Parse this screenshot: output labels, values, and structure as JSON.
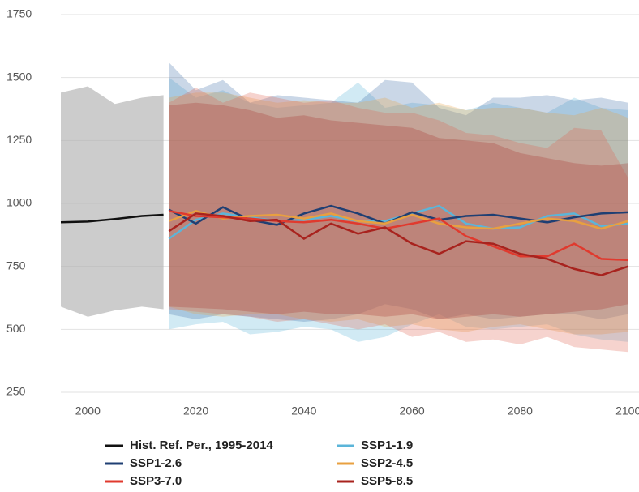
{
  "chart_data": {
    "type": "line",
    "xlim": [
      1995,
      2102
    ],
    "xticks": [
      2000,
      2020,
      2040,
      2060,
      2080,
      2100
    ],
    "ylim": [
      250,
      1750
    ],
    "yticks": [
      250,
      500,
      750,
      1000,
      1250,
      1500,
      1750
    ],
    "grid": true,
    "series": [
      {
        "name": "Hist. Ref. Per., 1995-2014",
        "color": "#111111",
        "band_color": "#b0b0b0",
        "x": [
          1995,
          2000,
          2005,
          2010,
          2014
        ],
        "values": [
          925,
          928,
          938,
          950,
          955
        ],
        "lower": [
          590,
          550,
          575,
          590,
          580
        ],
        "upper": [
          1440,
          1465,
          1395,
          1420,
          1430
        ]
      },
      {
        "name": "SSP1-1.9",
        "color": "#5bb5d9",
        "band_color": "#5bb5d9",
        "x": [
          2015,
          2020,
          2025,
          2030,
          2035,
          2040,
          2045,
          2050,
          2055,
          2060,
          2065,
          2070,
          2075,
          2080,
          2085,
          2090,
          2095,
          2100
        ],
        "values": [
          860,
          935,
          960,
          945,
          930,
          935,
          950,
          930,
          930,
          960,
          990,
          920,
          900,
          905,
          950,
          960,
          910,
          920
        ],
        "lower": [
          500,
          520,
          530,
          480,
          490,
          510,
          500,
          450,
          470,
          520,
          560,
          510,
          500,
          510,
          520,
          480,
          460,
          450
        ],
        "upper": [
          1500,
          1420,
          1450,
          1400,
          1380,
          1390,
          1400,
          1480,
          1380,
          1400,
          1390,
          1370,
          1400,
          1380,
          1360,
          1420,
          1380,
          1370
        ]
      },
      {
        "name": "SSP1-2.6",
        "color": "#1f3f73",
        "band_color": "#3f6fa8",
        "x": [
          2015,
          2020,
          2025,
          2030,
          2035,
          2040,
          2045,
          2050,
          2055,
          2060,
          2065,
          2070,
          2075,
          2080,
          2085,
          2090,
          2095,
          2100
        ],
        "values": [
          975,
          920,
          985,
          935,
          915,
          960,
          990,
          960,
          920,
          965,
          935,
          950,
          955,
          940,
          925,
          945,
          960,
          965
        ],
        "lower": [
          560,
          540,
          560,
          550,
          540,
          530,
          540,
          560,
          600,
          580,
          540,
          560,
          540,
          550,
          560,
          560,
          540,
          560
        ],
        "upper": [
          1560,
          1450,
          1490,
          1400,
          1430,
          1420,
          1410,
          1400,
          1490,
          1480,
          1380,
          1350,
          1420,
          1420,
          1430,
          1410,
          1420,
          1400
        ]
      },
      {
        "name": "SSP2-4.5",
        "color": "#e8a040",
        "band_color": "#e8a040",
        "x": [
          2015,
          2020,
          2025,
          2030,
          2035,
          2040,
          2045,
          2050,
          2055,
          2060,
          2065,
          2070,
          2075,
          2080,
          2085,
          2090,
          2095,
          2100
        ],
        "values": [
          930,
          970,
          940,
          950,
          955,
          940,
          960,
          930,
          920,
          955,
          920,
          905,
          900,
          920,
          940,
          930,
          900,
          930
        ],
        "lower": [
          590,
          560,
          550,
          560,
          560,
          540,
          530,
          540,
          510,
          520,
          500,
          490,
          510,
          520,
          500,
          480,
          480,
          490
        ],
        "upper": [
          1420,
          1440,
          1440,
          1420,
          1400,
          1410,
          1400,
          1400,
          1420,
          1380,
          1400,
          1370,
          1380,
          1380,
          1360,
          1350,
          1380,
          1340
        ]
      },
      {
        "name": "SSP3-7.0",
        "color": "#e03a2e",
        "band_color": "#e06050",
        "x": [
          2015,
          2020,
          2025,
          2030,
          2035,
          2040,
          2045,
          2050,
          2055,
          2060,
          2065,
          2070,
          2075,
          2080,
          2085,
          2090,
          2095,
          2100
        ],
        "values": [
          970,
          950,
          945,
          940,
          930,
          925,
          935,
          920,
          900,
          920,
          940,
          870,
          830,
          790,
          790,
          840,
          780,
          775
        ],
        "lower": [
          580,
          570,
          560,
          550,
          530,
          540,
          520,
          500,
          520,
          470,
          490,
          450,
          460,
          440,
          470,
          430,
          420,
          410
        ],
        "upper": [
          1400,
          1460,
          1400,
          1440,
          1420,
          1400,
          1410,
          1380,
          1360,
          1360,
          1330,
          1280,
          1270,
          1240,
          1220,
          1300,
          1290,
          1100
        ]
      },
      {
        "name": "SSP5-8.5",
        "color": "#a8231e",
        "band_color": "#a8362e",
        "x": [
          2015,
          2020,
          2025,
          2030,
          2035,
          2040,
          2045,
          2050,
          2055,
          2060,
          2065,
          2070,
          2075,
          2080,
          2085,
          2090,
          2095,
          2100
        ],
        "values": [
          890,
          960,
          950,
          930,
          935,
          860,
          920,
          880,
          905,
          840,
          800,
          850,
          840,
          800,
          780,
          740,
          715,
          750
        ],
        "lower": [
          590,
          585,
          580,
          570,
          560,
          570,
          560,
          560,
          550,
          560,
          540,
          550,
          560,
          550,
          560,
          570,
          580,
          600
        ],
        "upper": [
          1390,
          1400,
          1390,
          1370,
          1340,
          1350,
          1330,
          1320,
          1310,
          1300,
          1260,
          1250,
          1240,
          1200,
          1180,
          1160,
          1150,
          1160
        ]
      }
    ]
  }
}
